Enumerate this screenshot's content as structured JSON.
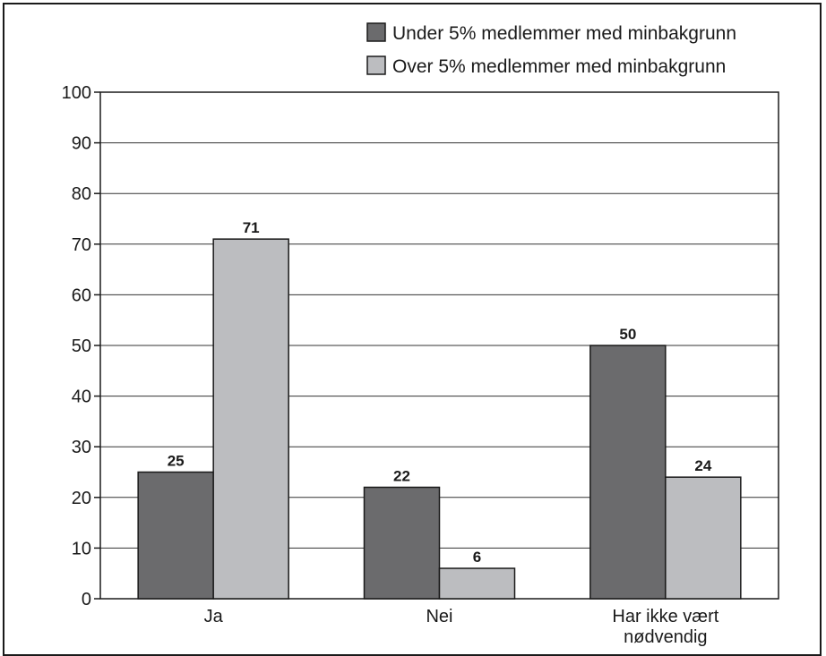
{
  "chart_data": {
    "type": "bar",
    "title": "",
    "xlabel": "",
    "ylabel": "",
    "ylim": [
      0,
      100
    ],
    "yticks": [
      0,
      10,
      20,
      30,
      40,
      50,
      60,
      70,
      80,
      90,
      100
    ],
    "grid": true,
    "legend_position": "top-right",
    "categories": [
      [
        "Ja"
      ],
      [
        "Nei"
      ],
      [
        "Har ikke vært",
        "nødvendig"
      ]
    ],
    "series": [
      {
        "name": "Under 5% medlemmer med minbakgrunn",
        "color": "#6b6b6d",
        "values": [
          25,
          22,
          50
        ]
      },
      {
        "name": "Over 5% medlemmer med minbakgrunn",
        "color": "#bcbdc0",
        "values": [
          71,
          6,
          24
        ]
      }
    ]
  }
}
